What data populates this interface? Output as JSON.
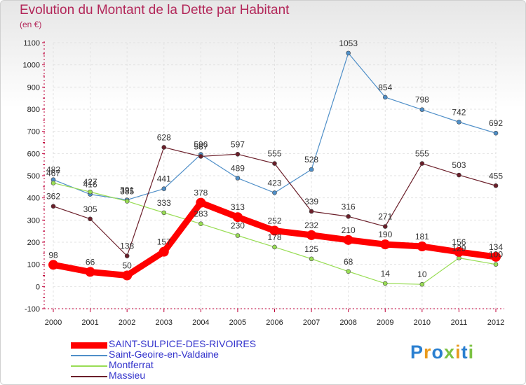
{
  "chart_data": {
    "type": "line",
    "title": "Evolution du Montant de la Dette par Habitant",
    "subtitle": "(en €)",
    "xlabel": "",
    "ylabel": "",
    "x": [
      "2000",
      "2001",
      "2002",
      "2003",
      "2004",
      "2005",
      "2006",
      "2007",
      "2008",
      "2009",
      "2010",
      "2011",
      "2012"
    ],
    "ylim": [
      -100,
      1100
    ],
    "yticks": [
      "-100",
      "0",
      "100",
      "200",
      "300",
      "400",
      "500",
      "600",
      "700",
      "800",
      "900",
      "1000",
      "1100"
    ],
    "grid": true,
    "legend_position": "bottom-left",
    "series": [
      {
        "name": "SAINT-SULPICE-DES-RIVOIRES",
        "color": "#ff0000",
        "values": [
          98,
          66,
          50,
          157,
          378,
          313,
          252,
          232,
          210,
          190,
          181,
          156,
          134
        ]
      },
      {
        "name": "Saint-Geoire-en-Valdaine",
        "color": "#4f8fc8",
        "values": [
          482,
          416,
          391,
          441,
          596,
          489,
          423,
          528,
          1053,
          854,
          798,
          742,
          692
        ]
      },
      {
        "name": "Montferrat",
        "color": "#99dd55",
        "values": [
          467,
          427,
          385,
          333,
          283,
          230,
          178,
          125,
          68,
          14,
          10,
          129,
          100
        ]
      },
      {
        "name": "Massieu",
        "color": "#6b1f2a",
        "values": [
          362,
          305,
          138,
          628,
          587,
          597,
          555,
          339,
          316,
          271,
          555,
          503,
          455
        ]
      }
    ]
  },
  "brand": {
    "letters": [
      "P",
      "r",
      "o",
      "x",
      "i",
      "t",
      "i"
    ],
    "colors": [
      "#2a7fd0",
      "#e89a1c",
      "#2a7fd0",
      "#7cc243",
      "#e89a1c",
      "#2a7fd0",
      "#7cc243"
    ]
  }
}
